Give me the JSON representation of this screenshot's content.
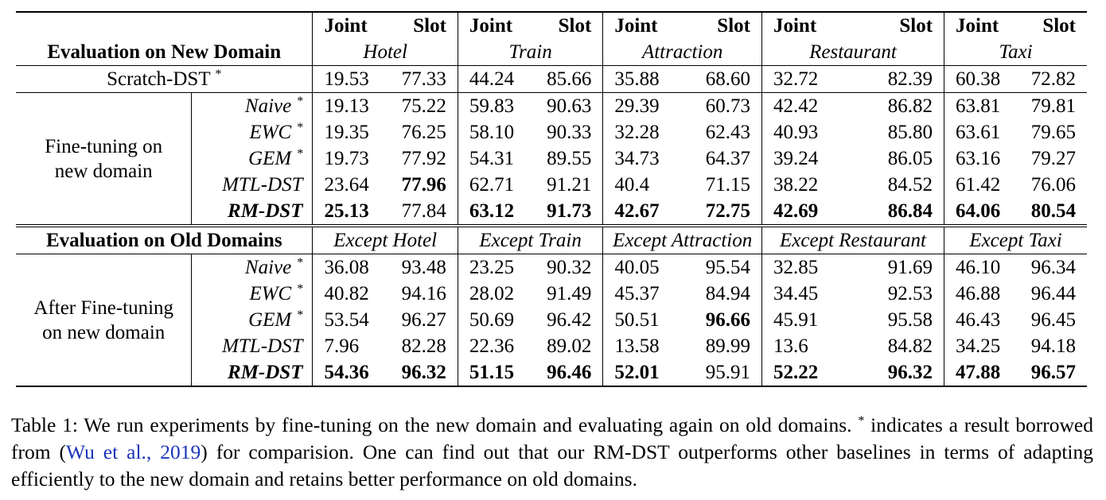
{
  "header": {
    "new_domain_label": "Evaluation on New Domain",
    "old_domain_label": "Evaluation on Old Domains",
    "joint": "Joint",
    "slot": "Slot",
    "domains": [
      "Hotel",
      "Train",
      "Attraction",
      "Restaurant",
      "Taxi"
    ],
    "except_domains": [
      "Except Hotel",
      "Except Train",
      "Except Attraction",
      "Except Restaurant",
      "Except Taxi"
    ]
  },
  "scratch": {
    "label": "Scratch-DST",
    "star": "*",
    "values": [
      "19.53",
      "77.33",
      "44.24",
      "85.66",
      "35.88",
      "68.60",
      "32.72",
      "82.39",
      "60.38",
      "72.82"
    ]
  },
  "groups": {
    "new": {
      "line1": "Fine-tuning on",
      "line2": "new domain"
    },
    "old": {
      "line1": "After Fine-tuning",
      "line2": "on new domain"
    }
  },
  "new_rows": [
    {
      "method": "Naive",
      "star": "*",
      "values": [
        "19.13",
        "75.22",
        "59.83",
        "90.63",
        "29.39",
        "60.73",
        "42.42",
        "86.82",
        "63.81",
        "79.81"
      ]
    },
    {
      "method": "EWC",
      "star": "*",
      "values": [
        "19.35",
        "76.25",
        "58.10",
        "90.33",
        "32.28",
        "62.43",
        "40.93",
        "85.80",
        "63.61",
        "79.65"
      ]
    },
    {
      "method": "GEM",
      "star": "*",
      "values": [
        "19.73",
        "77.92",
        "54.31",
        "89.55",
        "34.73",
        "64.37",
        "39.24",
        "86.05",
        "63.16",
        "79.27"
      ]
    },
    {
      "method": "MTL-DST",
      "star": "",
      "values": [
        "23.64",
        "77.96",
        "62.71",
        "91.21",
        "40.4",
        "71.15",
        "38.22",
        "84.52",
        "61.42",
        "76.06"
      ]
    },
    {
      "method": "RM-DST",
      "star": "",
      "values": [
        "25.13",
        "77.84",
        "63.12",
        "91.73",
        "42.67",
        "72.75",
        "42.69",
        "86.84",
        "64.06",
        "80.54"
      ]
    }
  ],
  "old_rows": [
    {
      "method": "Naive",
      "star": "*",
      "values": [
        "36.08",
        "93.48",
        "23.25",
        "90.32",
        "40.05",
        "95.54",
        "32.85",
        "91.69",
        "46.10",
        "96.34"
      ]
    },
    {
      "method": "EWC",
      "star": "*",
      "values": [
        "40.82",
        "94.16",
        "28.02",
        "91.49",
        "45.37",
        "84.94",
        "34.45",
        "92.53",
        "46.88",
        "96.44"
      ]
    },
    {
      "method": "GEM",
      "star": "*",
      "values": [
        "53.54",
        "96.27",
        "50.69",
        "96.42",
        "50.51",
        "96.66",
        "45.91",
        "95.58",
        "46.43",
        "96.45"
      ]
    },
    {
      "method": "MTL-DST",
      "star": "",
      "values": [
        "7.96",
        "82.28",
        "22.36",
        "89.02",
        "13.58",
        "89.99",
        "13.6",
        "84.82",
        "34.25",
        "94.18"
      ]
    },
    {
      "method": "RM-DST",
      "star": "",
      "values": [
        "54.36",
        "96.32",
        "51.15",
        "96.46",
        "52.01",
        "95.91",
        "52.22",
        "96.32",
        "47.88",
        "96.57"
      ]
    }
  ],
  "caption": {
    "part1": "Table 1: We run experiments by fine-tuning on the new domain and evaluating again on old domains. ",
    "star": "*",
    "part2": " indicates a result borrowed from (",
    "cite": "Wu et al., 2019",
    "part3": ") for comparision. One can find out that our RM-DST outperforms other baselines in terms of adapting efficiently to the new domain and retains better performance on old domains."
  }
}
